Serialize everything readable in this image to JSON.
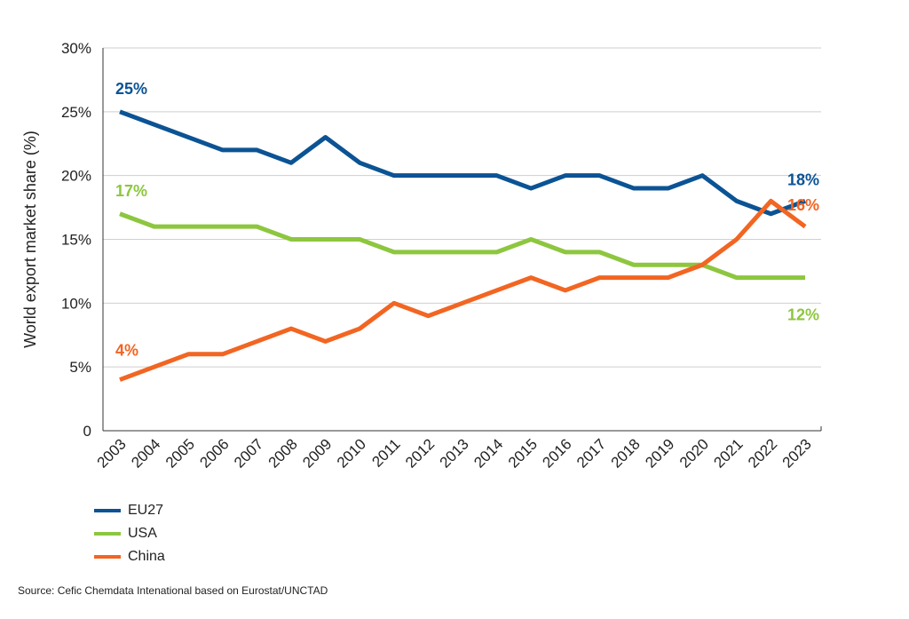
{
  "chart_data": {
    "type": "line",
    "ylabel": "World export market share (%)",
    "xlabel": "",
    "ylim": [
      0,
      30
    ],
    "yticks": [
      "0",
      "5%",
      "10%",
      "15%",
      "20%",
      "25%",
      "30%"
    ],
    "grid": true,
    "legend_placement": "bottom-left",
    "categories": [
      "2003",
      "2004",
      "2005",
      "2006",
      "2007",
      "2008",
      "2009",
      "2010",
      "2011",
      "2012",
      "2013",
      "2014",
      "2015",
      "2016",
      "2017",
      "2018",
      "2019",
      "2020",
      "2021",
      "2022",
      "2023"
    ],
    "series": [
      {
        "name": "EU27",
        "color": "#0b5394",
        "values": [
          25,
          24,
          23,
          22,
          22,
          21,
          23,
          21,
          20,
          20,
          20,
          20,
          19,
          20,
          20,
          19,
          19,
          20,
          18,
          17,
          18
        ],
        "start_label": "25%",
        "end_label": "18%"
      },
      {
        "name": "USA",
        "color": "#8dc63f",
        "values": [
          17,
          16,
          16,
          16,
          16,
          15,
          15,
          15,
          14,
          14,
          14,
          14,
          15,
          14,
          14,
          13,
          13,
          13,
          12,
          12,
          12
        ],
        "start_label": "17%",
        "end_label": "12%"
      },
      {
        "name": "China",
        "color": "#f26522",
        "values": [
          4,
          5,
          6,
          6,
          7,
          8,
          7,
          8,
          10,
          9,
          10,
          11,
          12,
          11,
          12,
          12,
          12,
          13,
          15,
          18,
          16
        ],
        "start_label": "4%",
        "end_label": "16%"
      }
    ]
  },
  "source": "Source: Cefic Chemdata Intenational based on Eurostat/UNCTAD"
}
